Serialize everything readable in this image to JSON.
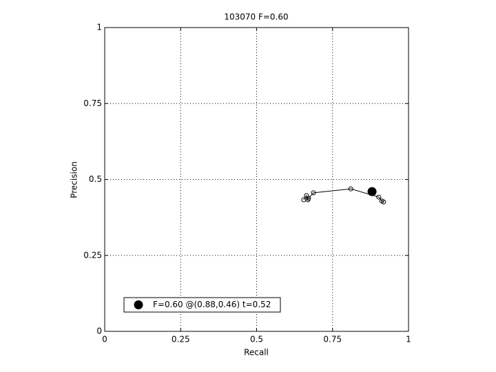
{
  "chart_data": {
    "type": "scatter",
    "title": "103070 F=0.60",
    "x_label": "Recall",
    "y_label": "Precision",
    "xlim": [
      0,
      1
    ],
    "ylim": [
      0,
      1
    ],
    "xticks": [
      0,
      0.25,
      0.5,
      0.75,
      1
    ],
    "yticks": [
      0,
      0.25,
      0.5,
      0.75,
      1
    ],
    "grid": true,
    "legend": "lower left",
    "series": [
      {
        "color": "#000000",
        "marker": "open-circle",
        "line": true,
        "x": [
          0.655,
          0.664,
          0.669,
          0.671,
          0.687,
          0.81,
          0.902,
          0.912,
          0.918
        ],
        "values": [
          0.433,
          0.447,
          0.433,
          0.438,
          0.456,
          0.469,
          0.442,
          0.429,
          0.426
        ]
      },
      {
        "name": "F=0.60 @(0.88,0.46) t=0.52",
        "color": "#000000",
        "marker": "filled-circle",
        "line": false,
        "x": [
          0.88
        ],
        "values": [
          0.46
        ]
      }
    ]
  }
}
